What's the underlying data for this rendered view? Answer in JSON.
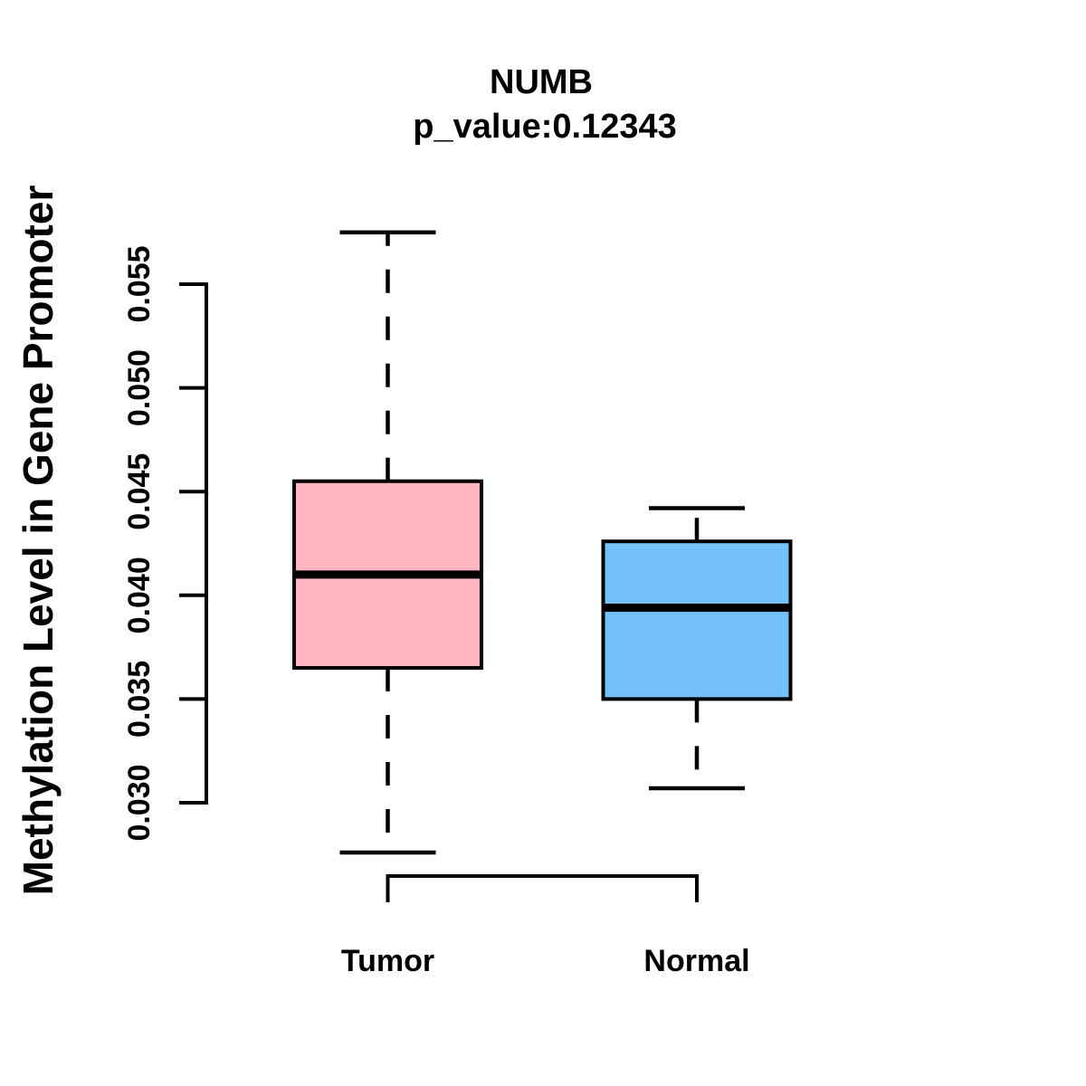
{
  "chart_data": {
    "type": "boxplot",
    "title": "NUMB",
    "subtitle": "p_value:0.12343",
    "ylabel": "Methylation Level in Gene Promoter",
    "xlabel": "",
    "categories": [
      "Tumor",
      "Normal"
    ],
    "y_tick_labels": [
      "0.030",
      "0.035",
      "0.040",
      "0.045",
      "0.050",
      "0.055"
    ],
    "y_tick_values": [
      0.03,
      0.035,
      0.04,
      0.045,
      0.05,
      0.055
    ],
    "ylim": [
      0.0276,
      0.0575
    ],
    "grid": false,
    "legend": "none",
    "stroke_color": "#000000",
    "background_color": "#FFFFFF",
    "series": [
      {
        "name": "Tumor",
        "fill_color": "#FFB6C1",
        "whisker_low": 0.0276,
        "q1": 0.0365,
        "median": 0.041,
        "q3": 0.0455,
        "whisker_high": 0.0575
      },
      {
        "name": "Normal",
        "fill_color": "#74C0F8",
        "whisker_low": 0.0307,
        "q1": 0.035,
        "median": 0.0394,
        "q3": 0.0426,
        "whisker_high": 0.0442
      }
    ]
  }
}
